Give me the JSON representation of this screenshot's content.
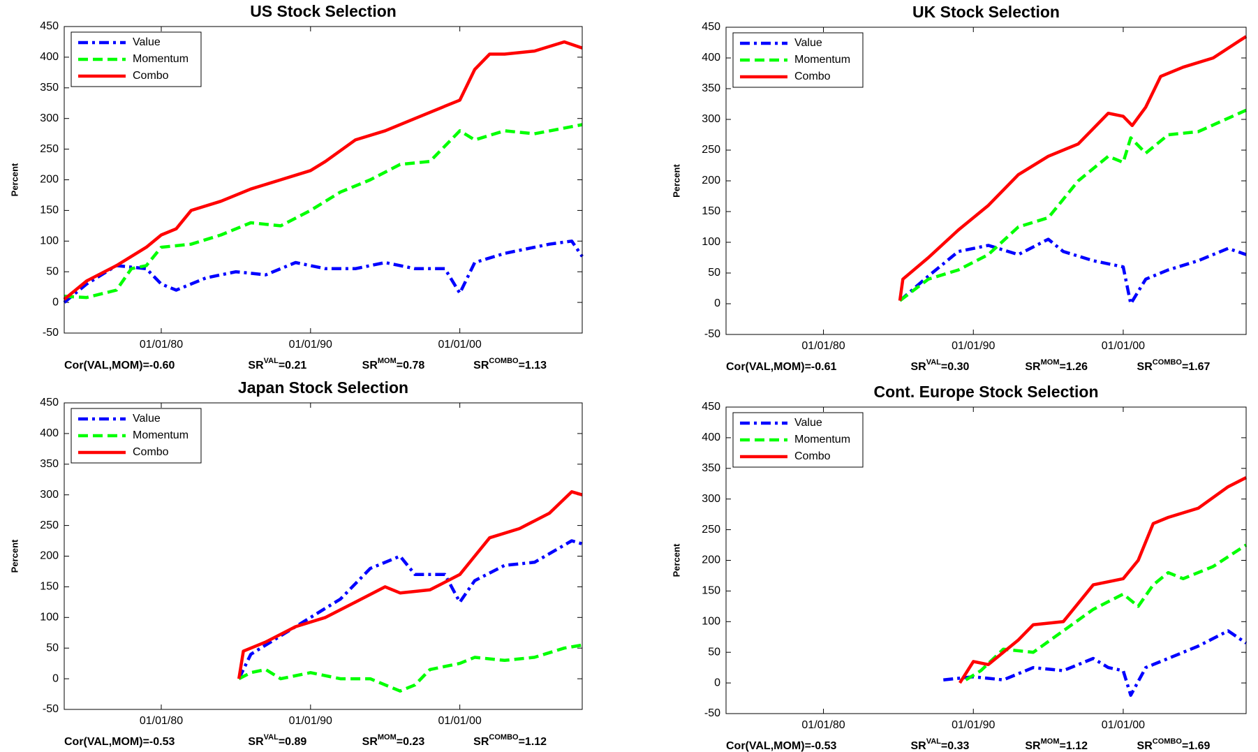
{
  "chart_data": [
    {
      "type": "line",
      "title": "US Stock Selection",
      "ylabel": "Percent",
      "legend": "upper left",
      "xlim": [
        1973.5,
        2008.2
      ],
      "ylim": [
        -50,
        450
      ],
      "xticks": [
        {
          "value": 1980,
          "label": "01/01/80"
        },
        {
          "value": 1990,
          "label": "01/01/90"
        },
        {
          "value": 2000,
          "label": "01/01/00"
        }
      ],
      "yticks": [
        -50,
        0,
        50,
        100,
        150,
        200,
        250,
        300,
        350,
        400,
        450
      ],
      "series": [
        {
          "name": "Value",
          "color": "#0000ff",
          "style": "dash-dot",
          "x": [
            1973.5,
            1975,
            1977,
            1979,
            1980,
            1981,
            1983,
            1985,
            1987,
            1989,
            1991,
            1993,
            1995,
            1997,
            1999,
            2000,
            2001,
            2003,
            2006,
            2007.5,
            2008.2
          ],
          "values": [
            0,
            30,
            60,
            55,
            30,
            20,
            40,
            50,
            45,
            65,
            55,
            55,
            65,
            55,
            55,
            15,
            65,
            80,
            95,
            100,
            75
          ]
        },
        {
          "name": "Momentum",
          "color": "#00ff00",
          "style": "dashed",
          "x": [
            1973.5,
            1975,
            1977,
            1978,
            1979,
            1980,
            1982,
            1984,
            1986,
            1988,
            1990,
            1992,
            1994,
            1996,
            1998,
            2000,
            2001,
            2003,
            2005,
            2008.2
          ],
          "values": [
            10,
            8,
            20,
            55,
            60,
            90,
            95,
            110,
            130,
            125,
            150,
            180,
            200,
            225,
            230,
            280,
            265,
            280,
            275,
            290
          ]
        },
        {
          "name": "Combo",
          "color": "#ff0000",
          "style": "solid",
          "x": [
            1973.5,
            1975,
            1977,
            1979,
            1980,
            1981,
            1982,
            1984,
            1986,
            1988,
            1990,
            1991,
            1993,
            1995,
            1997,
            1999,
            2000,
            2001,
            2002,
            2003,
            2005,
            2007,
            2008.2
          ],
          "values": [
            5,
            35,
            60,
            90,
            110,
            120,
            150,
            165,
            185,
            200,
            215,
            230,
            265,
            280,
            300,
            320,
            330,
            380,
            405,
            405,
            410,
            425,
            415
          ]
        }
      ],
      "stats": [
        {
          "base": "Cor(VAL,MOM)=-0.60"
        },
        {
          "base": "SR",
          "sup": "VAL",
          "rest": "=0.21"
        },
        {
          "base": "SR",
          "sup": "MOM",
          "rest": "=0.78"
        },
        {
          "base": "SR",
          "sup": "COMBO",
          "rest": "=1.13"
        }
      ]
    },
    {
      "type": "line",
      "title": "UK Stock Selection",
      "ylabel": "Percent",
      "legend": "upper left",
      "xlim": [
        1973.5,
        2008.2
      ],
      "ylim": [
        -50,
        450
      ],
      "xticks": [
        {
          "value": 1980,
          "label": "01/01/80"
        },
        {
          "value": 1990,
          "label": "01/01/90"
        },
        {
          "value": 2000,
          "label": "01/01/00"
        }
      ],
      "yticks": [
        -50,
        0,
        50,
        100,
        150,
        200,
        250,
        300,
        350,
        400,
        450
      ],
      "series": [
        {
          "name": "Value",
          "color": "#0000ff",
          "style": "dash-dot",
          "x": [
            1985.1,
            1987,
            1989,
            1991,
            1993,
            1995,
            1996,
            1998,
            2000,
            2000.5,
            2001.5,
            2003,
            2005,
            2007,
            2008.2
          ],
          "values": [
            5,
            45,
            85,
            95,
            80,
            105,
            85,
            70,
            60,
            0,
            40,
            55,
            70,
            90,
            80
          ]
        },
        {
          "name": "Momentum",
          "color": "#00ff00",
          "style": "dashed",
          "x": [
            1985.1,
            1987,
            1989,
            1991,
            1993,
            1995,
            1997,
            1999,
            2000,
            2000.5,
            2001.5,
            2003,
            2005,
            2008.2
          ],
          "values": [
            5,
            40,
            55,
            80,
            125,
            140,
            200,
            240,
            230,
            270,
            245,
            275,
            280,
            315
          ]
        },
        {
          "name": "Combo",
          "color": "#ff0000",
          "style": "solid",
          "x": [
            1985.1,
            1985.3,
            1987,
            1989,
            1991,
            1993,
            1995,
            1997,
            1999,
            2000,
            2000.6,
            2001.5,
            2002.5,
            2004,
            2006,
            2008.2
          ],
          "values": [
            5,
            40,
            75,
            120,
            160,
            210,
            240,
            260,
            310,
            305,
            290,
            320,
            370,
            385,
            400,
            435
          ]
        }
      ],
      "stats": [
        {
          "base": "Cor(VAL,MOM)=-0.61"
        },
        {
          "base": "SR",
          "sup": "VAL",
          "rest": "=0.30"
        },
        {
          "base": "SR",
          "sup": "MOM",
          "rest": "=1.26"
        },
        {
          "base": "SR",
          "sup": "COMBO",
          "rest": "=1.67"
        }
      ]
    },
    {
      "type": "line",
      "title": "Japan Stock Selection",
      "ylabel": "Percent",
      "legend": "upper left",
      "xlim": [
        1973.5,
        2008.2
      ],
      "ylim": [
        -50,
        450
      ],
      "xticks": [
        {
          "value": 1980,
          "label": "01/01/80"
        },
        {
          "value": 1990,
          "label": "01/01/90"
        },
        {
          "value": 2000,
          "label": "01/01/00"
        }
      ],
      "yticks": [
        -50,
        0,
        50,
        100,
        150,
        200,
        250,
        300,
        350,
        400,
        450
      ],
      "series": [
        {
          "name": "Value",
          "color": "#0000ff",
          "style": "dash-dot",
          "x": [
            1985.2,
            1986,
            1988,
            1990,
            1992,
            1994,
            1996,
            1997,
            1999,
            2000,
            2001,
            2003,
            2005,
            2007.5,
            2008.2
          ],
          "values": [
            0,
            40,
            70,
            100,
            130,
            180,
            200,
            170,
            170,
            125,
            160,
            185,
            190,
            225,
            220
          ]
        },
        {
          "name": "Momentum",
          "color": "#00ff00",
          "style": "dashed",
          "x": [
            1985.2,
            1986,
            1987,
            1988,
            1990,
            1992,
            1994,
            1996,
            1997,
            1998,
            2000,
            2001,
            2003,
            2005,
            2007,
            2008.2
          ],
          "values": [
            0,
            10,
            15,
            0,
            10,
            0,
            0,
            -20,
            -10,
            15,
            25,
            35,
            30,
            35,
            50,
            55
          ]
        },
        {
          "name": "Combo",
          "color": "#ff0000",
          "style": "solid",
          "x": [
            1985.2,
            1985.5,
            1987,
            1989,
            1991,
            1993,
            1995,
            1996,
            1998,
            2000,
            2001,
            2002,
            2004,
            2006,
            2007.5,
            2008.2
          ],
          "values": [
            0,
            45,
            60,
            85,
            100,
            125,
            150,
            140,
            145,
            170,
            200,
            230,
            245,
            270,
            305,
            300
          ]
        }
      ],
      "stats": [
        {
          "base": "Cor(VAL,MOM)=-0.53"
        },
        {
          "base": "SR",
          "sup": "VAL",
          "rest": "=0.89"
        },
        {
          "base": "SR",
          "sup": "MOM",
          "rest": "=0.23"
        },
        {
          "base": "SR",
          "sup": "COMBO",
          "rest": "=1.12"
        }
      ]
    },
    {
      "type": "line",
      "title": "Cont. Europe Stock Selection",
      "ylabel": "Percent",
      "legend": "upper left",
      "xlim": [
        1973.5,
        2008.2
      ],
      "ylim": [
        -50,
        450
      ],
      "xticks": [
        {
          "value": 1980,
          "label": "01/01/80"
        },
        {
          "value": 1990,
          "label": "01/01/90"
        },
        {
          "value": 2000,
          "label": "01/01/00"
        }
      ],
      "yticks": [
        -50,
        0,
        50,
        100,
        150,
        200,
        250,
        300,
        350,
        400,
        450
      ],
      "series": [
        {
          "name": "Value",
          "color": "#0000ff",
          "style": "dash-dot",
          "x": [
            1988,
            1990,
            1992,
            1994,
            1996,
            1998,
            1999,
            2000,
            2000.5,
            2001.5,
            2003,
            2005,
            2007,
            2008.2
          ],
          "values": [
            5,
            10,
            5,
            25,
            20,
            40,
            25,
            20,
            -20,
            25,
            40,
            60,
            85,
            65
          ]
        },
        {
          "name": "Momentum",
          "color": "#00ff00",
          "style": "dashed",
          "x": [
            1989.5,
            1990.5,
            1992,
            1994,
            1996,
            1998,
            2000,
            2001,
            2002,
            2003,
            2004,
            2006,
            2008.2
          ],
          "values": [
            5,
            20,
            55,
            50,
            85,
            120,
            145,
            125,
            160,
            180,
            170,
            190,
            225
          ]
        },
        {
          "name": "Combo",
          "color": "#ff0000",
          "style": "solid",
          "x": [
            1989.1,
            1990,
            1991,
            1993,
            1994,
            1996,
            1998,
            1999,
            2000,
            2001,
            2002,
            2003,
            2005,
            2007,
            2008.2
          ],
          "values": [
            0,
            35,
            30,
            70,
            95,
            100,
            160,
            165,
            170,
            200,
            260,
            270,
            285,
            320,
            335
          ]
        }
      ],
      "stats": [
        {
          "base": "Cor(VAL,MOM)=-0.53"
        },
        {
          "base": "SR",
          "sup": "VAL",
          "rest": "=0.33"
        },
        {
          "base": "SR",
          "sup": "MOM",
          "rest": "=1.12"
        },
        {
          "base": "SR",
          "sup": "COMBO",
          "rest": "=1.69"
        }
      ]
    }
  ]
}
